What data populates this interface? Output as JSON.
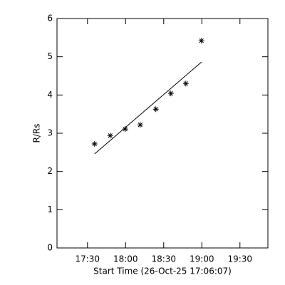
{
  "chart_data": {
    "type": "scatter",
    "xlabel": "Start Time (26-Oct-25 17:06:07)",
    "ylabel": "R/Rs",
    "x": [
      1055.6,
      1067.9,
      1079.7,
      1091.5,
      1103.8,
      1115.6,
      1127.4,
      1139.7
    ],
    "values": [
      2.72,
      2.94,
      3.11,
      3.22,
      3.63,
      4.04,
      4.3,
      5.42
    ],
    "fit": {
      "x": [
        1055.6,
        1139.7
      ],
      "y": [
        2.46,
        4.86
      ]
    },
    "color": "#000000",
    "xlim": [
      1026,
      1192
    ],
    "xticks": [
      {
        "value": 1050,
        "label": "17:30"
      },
      {
        "value": 1080,
        "label": "18:00"
      },
      {
        "value": 1110,
        "label": "18:30"
      },
      {
        "value": 1140,
        "label": "19:00"
      },
      {
        "value": 1170,
        "label": "19:30"
      }
    ],
    "ylim": [
      0,
      6
    ],
    "yticks": [
      0,
      1,
      2,
      3,
      4,
      5,
      6
    ]
  }
}
